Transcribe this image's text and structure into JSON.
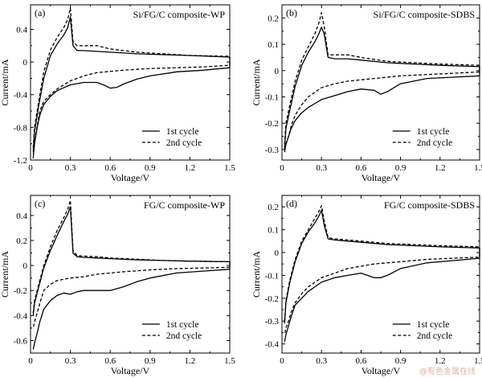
{
  "watermark": "@有色金属在线",
  "chart_data": [
    {
      "type": "line",
      "panel_label": "(a)",
      "title": "Si/FG/C composite-WP",
      "xlabel": "Voltage/V",
      "ylabel": "Current/mA",
      "xlim": [
        0,
        1.5
      ],
      "ylim": [
        -1.2,
        0.7
      ],
      "xticks": [
        0,
        0.3,
        0.6,
        0.9,
        1.2,
        1.5
      ],
      "xtick_labels": [
        "0",
        "0.3",
        "0.6",
        "0.9",
        "1.2",
        "1.5"
      ],
      "yticks": [
        -1.2,
        -0.8,
        -0.4,
        0,
        0.4
      ],
      "ytick_labels": [
        "-1.2",
        "-0.8",
        "-0.4",
        "0",
        "0.4"
      ],
      "legend": "bottom-right",
      "grid": false,
      "series": [
        {
          "name": "1st cycle",
          "style": "solid",
          "x": [
            0.02,
            0.03,
            0.06,
            0.1,
            0.15,
            0.2,
            0.25,
            0.28,
            0.3,
            0.32,
            0.35,
            0.4,
            0.5,
            0.6,
            0.8,
            1.0,
            1.2,
            1.5,
            1.5,
            1.3,
            1.1,
            0.9,
            0.8,
            0.7,
            0.65,
            0.6,
            0.55,
            0.5,
            0.4,
            0.3,
            0.2,
            0.15,
            0.1,
            0.07,
            0.05,
            0.03,
            0.02
          ],
          "y": [
            -1.1,
            -0.85,
            -0.55,
            -0.2,
            0.08,
            0.22,
            0.33,
            0.42,
            0.55,
            0.2,
            0.14,
            0.14,
            0.13,
            0.12,
            0.1,
            0.09,
            0.08,
            0.06,
            -0.07,
            -0.1,
            -0.12,
            -0.17,
            -0.21,
            -0.27,
            -0.31,
            -0.32,
            -0.28,
            -0.25,
            -0.25,
            -0.28,
            -0.35,
            -0.42,
            -0.52,
            -0.65,
            -0.8,
            -1.0,
            -1.18
          ]
        },
        {
          "name": "2nd cycle",
          "style": "dashed",
          "x": [
            0.02,
            0.03,
            0.06,
            0.1,
            0.15,
            0.2,
            0.25,
            0.28,
            0.3,
            0.32,
            0.35,
            0.4,
            0.5,
            0.6,
            0.8,
            1.0,
            1.2,
            1.5,
            1.5,
            1.3,
            1.1,
            0.9,
            0.7,
            0.5,
            0.4,
            0.3,
            0.2,
            0.15,
            0.1,
            0.07,
            0.05,
            0.03,
            0.02
          ],
          "y": [
            -1.05,
            -0.8,
            -0.5,
            -0.12,
            0.15,
            0.3,
            0.42,
            0.52,
            0.66,
            0.25,
            0.2,
            0.2,
            0.2,
            0.16,
            0.12,
            0.1,
            0.08,
            0.07,
            -0.04,
            -0.06,
            -0.07,
            -0.08,
            -0.1,
            -0.13,
            -0.17,
            -0.23,
            -0.33,
            -0.4,
            -0.48,
            -0.6,
            -0.78,
            -0.98,
            -1.12
          ]
        }
      ]
    },
    {
      "type": "line",
      "panel_label": "(b)",
      "title": "Si/FG/C composite-SDBS",
      "xlabel": "Voltage/V",
      "ylabel": "Current/mA",
      "xlim": [
        0,
        1.5
      ],
      "ylim": [
        -0.34,
        0.25
      ],
      "xticks": [
        0,
        0.3,
        0.6,
        0.9,
        1.2,
        1.5
      ],
      "xtick_labels": [
        "0",
        "0.3",
        "0.6",
        "0.9",
        "1.2",
        "1.5"
      ],
      "yticks": [
        -0.3,
        -0.2,
        -0.1,
        0,
        0.1,
        0.2
      ],
      "ytick_labels": [
        "-0.3",
        "-0.2",
        "-0.1",
        "0",
        "0.1",
        "0.2"
      ],
      "legend": "bottom-right",
      "grid": false,
      "series": [
        {
          "name": "1st cycle",
          "style": "solid",
          "x": [
            0.02,
            0.03,
            0.06,
            0.1,
            0.15,
            0.2,
            0.25,
            0.28,
            0.3,
            0.32,
            0.35,
            0.4,
            0.5,
            0.6,
            0.8,
            1.0,
            1.2,
            1.5,
            1.5,
            1.3,
            1.1,
            0.9,
            0.8,
            0.75,
            0.7,
            0.6,
            0.5,
            0.4,
            0.3,
            0.2,
            0.15,
            0.1,
            0.07,
            0.05,
            0.03,
            0.02
          ],
          "y": [
            -0.3,
            -0.22,
            -0.15,
            -0.06,
            0.02,
            0.07,
            0.11,
            0.14,
            0.165,
            0.14,
            0.05,
            0.045,
            0.045,
            0.04,
            0.03,
            0.025,
            0.02,
            0.015,
            -0.02,
            -0.025,
            -0.03,
            -0.05,
            -0.08,
            -0.09,
            -0.075,
            -0.07,
            -0.08,
            -0.095,
            -0.11,
            -0.14,
            -0.16,
            -0.19,
            -0.22,
            -0.25,
            -0.28,
            -0.31
          ]
        },
        {
          "name": "2nd cycle",
          "style": "dashed",
          "x": [
            0.02,
            0.03,
            0.06,
            0.1,
            0.15,
            0.2,
            0.25,
            0.28,
            0.3,
            0.32,
            0.35,
            0.4,
            0.5,
            0.6,
            0.8,
            1.0,
            1.2,
            1.5,
            1.5,
            1.3,
            1.1,
            0.9,
            0.7,
            0.5,
            0.4,
            0.3,
            0.2,
            0.15,
            0.1,
            0.07,
            0.05,
            0.03,
            0.02
          ],
          "y": [
            -0.28,
            -0.2,
            -0.13,
            -0.04,
            0.04,
            0.09,
            0.14,
            0.18,
            0.22,
            0.17,
            0.06,
            0.06,
            0.06,
            0.05,
            0.035,
            0.03,
            0.025,
            0.02,
            -0.005,
            -0.01,
            -0.015,
            -0.02,
            -0.03,
            -0.04,
            -0.05,
            -0.065,
            -0.1,
            -0.13,
            -0.17,
            -0.21,
            -0.25,
            -0.28,
            -0.3
          ]
        }
      ]
    },
    {
      "type": "line",
      "panel_label": "(c)",
      "title": "FG/C composite-WP",
      "xlabel": "Voltage/V",
      "ylabel": "Current/mA",
      "xlim": [
        0,
        1.5
      ],
      "ylim": [
        -0.7,
        0.56
      ],
      "xticks": [
        0,
        0.3,
        0.6,
        0.9,
        1.2,
        1.5
      ],
      "xtick_labels": [
        "0",
        "0.3",
        "0.6",
        "0.9",
        "1.2",
        "1.5"
      ],
      "yticks": [
        -0.6,
        -0.4,
        -0.2,
        0,
        0.2,
        0.4
      ],
      "ytick_labels": [
        "-0.6",
        "-0.4",
        "-0.2",
        "0",
        "0.2",
        "0.4"
      ],
      "legend": "bottom-right",
      "grid": false,
      "series": [
        {
          "name": "1st cycle",
          "style": "solid",
          "x": [
            0.02,
            0.03,
            0.06,
            0.1,
            0.15,
            0.2,
            0.25,
            0.28,
            0.3,
            0.32,
            0.35,
            0.4,
            0.5,
            0.6,
            0.8,
            1.0,
            1.2,
            1.5,
            1.5,
            1.3,
            1.1,
            0.9,
            0.8,
            0.7,
            0.6,
            0.5,
            0.4,
            0.35,
            0.3,
            0.25,
            0.2,
            0.15,
            0.1,
            0.07,
            0.05,
            0.03,
            0.02
          ],
          "y": [
            -0.4,
            -0.3,
            -0.18,
            -0.02,
            0.12,
            0.24,
            0.35,
            0.41,
            0.47,
            0.1,
            0.07,
            0.065,
            0.06,
            0.055,
            0.045,
            0.04,
            0.035,
            0.03,
            -0.03,
            -0.045,
            -0.06,
            -0.1,
            -0.13,
            -0.17,
            -0.2,
            -0.2,
            -0.2,
            -0.21,
            -0.23,
            -0.22,
            -0.24,
            -0.28,
            -0.35,
            -0.45,
            -0.54,
            -0.62,
            -0.67
          ]
        },
        {
          "name": "2nd cycle",
          "style": "dashed",
          "x": [
            0.02,
            0.03,
            0.06,
            0.1,
            0.15,
            0.2,
            0.25,
            0.28,
            0.3,
            0.32,
            0.35,
            0.4,
            0.5,
            0.6,
            0.8,
            1.0,
            1.2,
            1.5,
            1.5,
            1.3,
            1.1,
            0.9,
            0.7,
            0.5,
            0.4,
            0.3,
            0.2,
            0.15,
            0.1,
            0.07,
            0.05,
            0.03,
            0.02
          ],
          "y": [
            -0.38,
            -0.28,
            -0.16,
            0.0,
            0.15,
            0.28,
            0.38,
            0.45,
            0.52,
            0.12,
            0.08,
            0.075,
            0.07,
            0.06,
            0.05,
            0.04,
            0.035,
            0.03,
            -0.015,
            -0.02,
            -0.025,
            -0.035,
            -0.05,
            -0.07,
            -0.09,
            -0.1,
            -0.12,
            -0.15,
            -0.2,
            -0.3,
            -0.38,
            -0.45,
            -0.5
          ]
        }
      ]
    },
    {
      "type": "line",
      "panel_label": "(d)",
      "title": "FG/C composite-SDBS",
      "xlabel": "Voltage/V",
      "ylabel": "Current/mA",
      "xlim": [
        0,
        1.5
      ],
      "ylim": [
        -0.44,
        0.25
      ],
      "xticks": [
        0,
        0.3,
        0.6,
        0.9,
        1.2,
        1.5
      ],
      "xtick_labels": [
        "0",
        "0.3",
        "0.6",
        "0.9",
        "1.2",
        "1.5"
      ],
      "yticks": [
        -0.4,
        -0.3,
        -0.2,
        -0.1,
        0,
        0.1,
        0.2
      ],
      "ytick_labels": [
        "-0.4",
        "-0.3",
        "-0.2",
        "-0.1",
        "0",
        "0.1",
        "0.2"
      ],
      "legend": "bottom-right",
      "grid": false,
      "series": [
        {
          "name": "1st cycle",
          "style": "solid",
          "x": [
            0.02,
            0.03,
            0.06,
            0.1,
            0.15,
            0.2,
            0.25,
            0.28,
            0.3,
            0.32,
            0.35,
            0.4,
            0.5,
            0.6,
            0.8,
            1.0,
            1.2,
            1.5,
            1.5,
            1.3,
            1.1,
            0.9,
            0.8,
            0.75,
            0.7,
            0.6,
            0.5,
            0.4,
            0.3,
            0.2,
            0.15,
            0.1,
            0.07,
            0.05,
            0.03,
            0.02
          ],
          "y": [
            -0.31,
            -0.22,
            -0.13,
            -0.04,
            0.04,
            0.09,
            0.13,
            0.16,
            0.185,
            0.12,
            0.06,
            0.055,
            0.05,
            0.045,
            0.035,
            0.03,
            0.025,
            0.02,
            -0.025,
            -0.035,
            -0.045,
            -0.07,
            -0.1,
            -0.11,
            -0.11,
            -0.09,
            -0.1,
            -0.11,
            -0.13,
            -0.17,
            -0.2,
            -0.23,
            -0.28,
            -0.32,
            -0.36,
            -0.39
          ]
        },
        {
          "name": "2nd cycle",
          "style": "dashed",
          "x": [
            0.02,
            0.03,
            0.06,
            0.1,
            0.15,
            0.2,
            0.25,
            0.28,
            0.3,
            0.32,
            0.35,
            0.4,
            0.5,
            0.6,
            0.8,
            1.0,
            1.2,
            1.5,
            1.5,
            1.3,
            1.1,
            0.9,
            0.7,
            0.5,
            0.4,
            0.3,
            0.2,
            0.15,
            0.1,
            0.07,
            0.05,
            0.03,
            0.02
          ],
          "y": [
            -0.3,
            -0.21,
            -0.12,
            -0.03,
            0.05,
            0.1,
            0.15,
            0.18,
            0.205,
            0.14,
            0.065,
            0.06,
            0.055,
            0.05,
            0.04,
            0.035,
            0.03,
            0.025,
            -0.02,
            -0.025,
            -0.03,
            -0.04,
            -0.05,
            -0.07,
            -0.09,
            -0.11,
            -0.15,
            -0.18,
            -0.22,
            -0.26,
            -0.3,
            -0.33,
            -0.36
          ]
        }
      ]
    }
  ]
}
